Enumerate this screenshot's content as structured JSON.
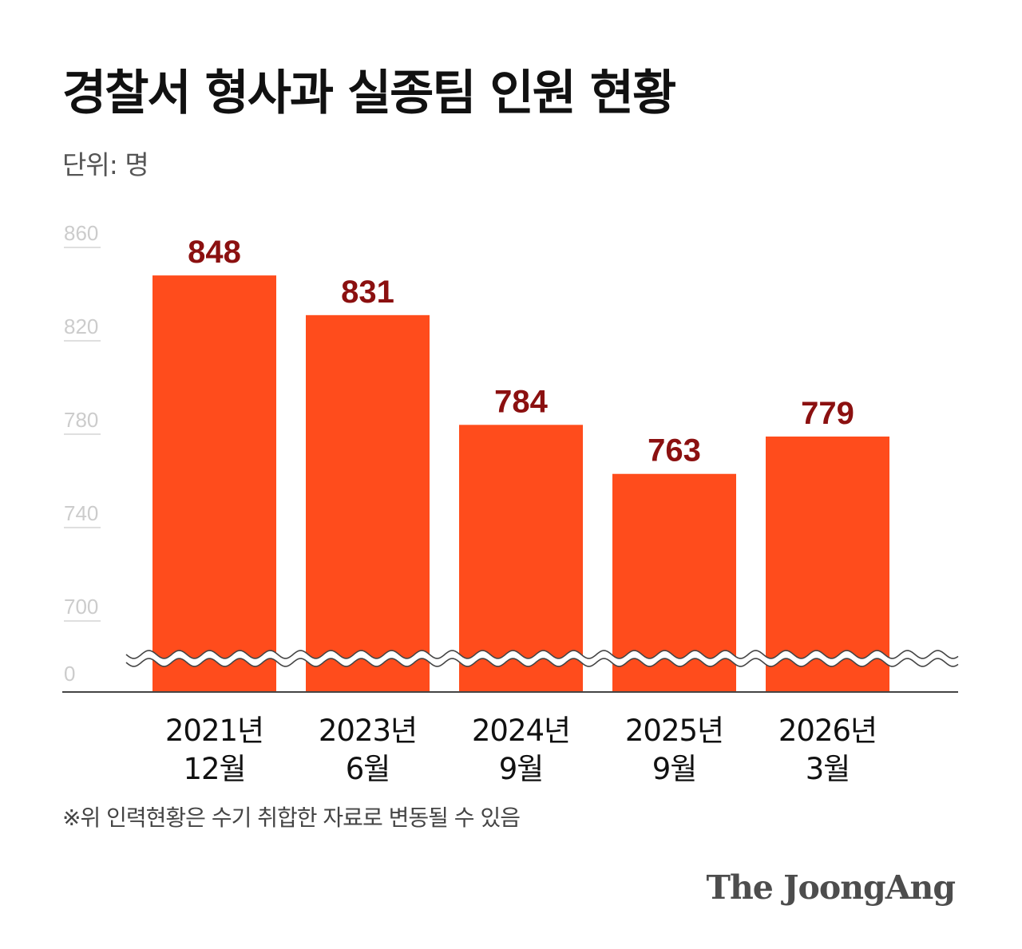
{
  "title": "경찰서 형사과 실종팀 인원 현황",
  "unit_label": "단위: 명",
  "note": "※위 인력현황은 수기 취합한 자료로 변동될 수 있음",
  "logo": "The JoongAng",
  "colors": {
    "bar": "#ff4c1c",
    "value_label": "#8b1010",
    "tick": "#cccccc",
    "axis": "#444444"
  },
  "chart_data": {
    "type": "bar",
    "categories": [
      [
        "2021년",
        "12월"
      ],
      [
        "2023년",
        "6월"
      ],
      [
        "2024년",
        "9월"
      ],
      [
        "2025년",
        "9월"
      ],
      [
        "2026년",
        "3월"
      ]
    ],
    "values": [
      848,
      831,
      784,
      763,
      779
    ],
    "ylim": [
      0,
      860
    ],
    "axis_break": [
      0,
      700
    ],
    "yticks": [
      0,
      700,
      740,
      780,
      820,
      860
    ],
    "grid": false,
    "legend": "none"
  }
}
